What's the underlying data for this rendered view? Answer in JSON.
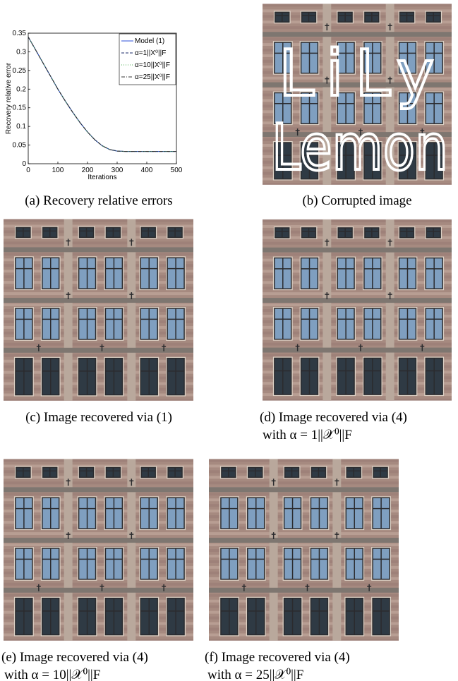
{
  "chart_data": {
    "type": "line",
    "x": [
      0,
      25,
      50,
      75,
      100,
      125,
      150,
      175,
      200,
      225,
      250,
      275,
      300,
      325,
      350,
      375,
      400,
      425,
      450,
      475,
      500
    ],
    "series": [
      {
        "name": "Model (1)",
        "color": "#2b4fd8",
        "dash": "none",
        "values": [
          0.34,
          0.305,
          0.27,
          0.235,
          0.2,
          0.168,
          0.138,
          0.11,
          0.085,
          0.064,
          0.048,
          0.038,
          0.034,
          0.033,
          0.033,
          0.033,
          0.033,
          0.033,
          0.033,
          0.033,
          0.033
        ]
      },
      {
        "name": "α=1||X⁰||F",
        "color": "#1a2a6a",
        "dash": "4 2",
        "values": [
          0.34,
          0.305,
          0.27,
          0.235,
          0.2,
          0.168,
          0.138,
          0.11,
          0.085,
          0.064,
          0.048,
          0.038,
          0.034,
          0.033,
          0.033,
          0.033,
          0.033,
          0.033,
          0.033,
          0.033,
          0.033
        ]
      },
      {
        "name": "α=10||X⁰||F",
        "color": "#4caf50",
        "dash": "1 2",
        "values": [
          0.34,
          0.305,
          0.27,
          0.235,
          0.2,
          0.168,
          0.138,
          0.11,
          0.085,
          0.064,
          0.048,
          0.038,
          0.034,
          0.033,
          0.033,
          0.033,
          0.033,
          0.033,
          0.033,
          0.033,
          0.033
        ]
      },
      {
        "name": "α=25||X⁰||F",
        "color": "#333333",
        "dash": "5 2 1 2",
        "values": [
          0.34,
          0.305,
          0.27,
          0.235,
          0.2,
          0.168,
          0.138,
          0.11,
          0.085,
          0.064,
          0.048,
          0.038,
          0.034,
          0.033,
          0.033,
          0.033,
          0.033,
          0.033,
          0.033,
          0.033,
          0.033
        ]
      }
    ],
    "xlim": [
      0,
      500
    ],
    "ylim": [
      0,
      0.35
    ],
    "xticks": [
      0,
      100,
      200,
      300,
      400,
      500
    ],
    "yticks": [
      0,
      0.05,
      0.1,
      0.15,
      0.2,
      0.25,
      0.3,
      0.35
    ],
    "xlabel": "Iterations",
    "ylabel": "Recovery relative error",
    "legend": "upper right"
  },
  "corrupted_text": [
    "LiLy",
    "Lemon"
  ],
  "captions": [
    [
      "(a) Recovery relative errors"
    ],
    [
      "(b) Corrupted image"
    ],
    [
      "(c) Image recovered via (1)"
    ],
    [
      "(d) Image recovered via (4)",
      "with α = 1||𝒳⁰||F"
    ],
    [
      "(e) Image recovered via (4)",
      "with α = 10||𝒳⁰||F"
    ],
    [
      "(f) Image recovered via (4)",
      "with α = 25||𝒳⁰||F"
    ]
  ]
}
